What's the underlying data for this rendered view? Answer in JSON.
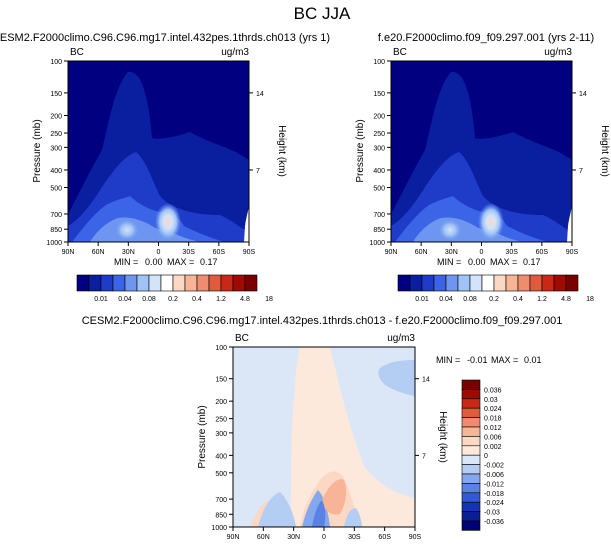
{
  "figure": {
    "title": "BC JJA"
  },
  "chart_data": [
    {
      "type": "contour",
      "title": "CESM2.F2000climo.C96.C96.mg17.intel.432pes.1thrds.ch013 (yrs 1)",
      "left_label": "BC",
      "right_label": "ug/m3",
      "ylabel": "Pressure (mb)",
      "ylabel_right": "Height (km)",
      "x_ticks": [
        "90N",
        "60N",
        "30N",
        "0",
        "30S",
        "60S",
        "90S"
      ],
      "y_ticks": [
        "100",
        "150",
        "200",
        "250",
        "300",
        "400",
        "500",
        "700",
        "850",
        "1000"
      ],
      "y_ticks_right": [
        "14",
        "7"
      ],
      "y_scale": "log",
      "ylim": [
        1000,
        100
      ],
      "xlim": [
        90,
        -90
      ],
      "min_label": "MIN =",
      "min_value": "0.00",
      "max_label": "MAX =",
      "max_value": "0.17",
      "colorbar": {
        "orientation": "horizontal",
        "levels": [
          "0.01",
          "0.04",
          "0.08",
          "0.2",
          "0.4",
          "1.2",
          "4.8",
          "18"
        ],
        "colors": [
          "#000080",
          "#0a1ea0",
          "#1e3cc8",
          "#3c64e6",
          "#6e96f0",
          "#a0c3f5",
          "#d2e3fa",
          "#ffffff",
          "#fbd8c4",
          "#f7b496",
          "#f08c6e",
          "#e05a3c",
          "#c82814",
          "#a00a00",
          "#7a0000"
        ]
      }
    },
    {
      "type": "contour",
      "title": "f.e20.F2000climo.f09_f09.297.001 (yrs 2-11)",
      "left_label": "BC",
      "right_label": "ug/m3",
      "ylabel": "Pressure (mb)",
      "ylabel_right": "Height (km)",
      "x_ticks": [
        "90N",
        "60N",
        "30N",
        "0",
        "30S",
        "60S",
        "90S"
      ],
      "y_ticks": [
        "100",
        "150",
        "200",
        "250",
        "300",
        "400",
        "500",
        "700",
        "850",
        "1000"
      ],
      "y_ticks_right": [
        "14",
        "7"
      ],
      "y_scale": "log",
      "ylim": [
        1000,
        100
      ],
      "xlim": [
        90,
        -90
      ],
      "min_label": "MIN =",
      "min_value": "0.00",
      "max_label": "MAX =",
      "max_value": "0.17"
    },
    {
      "type": "contour",
      "title": "CESM2.F2000climo.C96.C96.mg17.intel.432pes.1thrds.ch013 - f.e20.F2000climo.f09_f09.297.001",
      "left_label": "BC",
      "right_label": "ug/m3",
      "ylabel": "Pressure (mb)",
      "ylabel_right": "Height (km)",
      "x_ticks": [
        "90N",
        "60N",
        "30N",
        "0",
        "30S",
        "60S",
        "90S"
      ],
      "y_ticks": [
        "100",
        "150",
        "200",
        "250",
        "300",
        "400",
        "500",
        "700",
        "850",
        "1000"
      ],
      "y_ticks_right": [
        "14",
        "7"
      ],
      "y_scale": "log",
      "ylim": [
        1000,
        100
      ],
      "xlim": [
        90,
        -90
      ],
      "min_label": "MIN =",
      "min_value": "-0.01",
      "max_label": "MAX =",
      "max_value": "0.01",
      "colorbar": {
        "orientation": "vertical",
        "levels": [
          "0.036",
          "0.03",
          "0.024",
          "0.018",
          "0.012",
          "0.006",
          "0.002",
          "0",
          "-0.002",
          "-0.006",
          "-0.012",
          "-0.018",
          "-0.024",
          "-0.03",
          "-0.036"
        ],
        "colors": [
          "#7a0000",
          "#a00a00",
          "#c82814",
          "#e05a3c",
          "#f08c6e",
          "#f7b496",
          "#fbd8c4",
          "#fde9dc",
          "#dbe7f7",
          "#b4cdf2",
          "#84a8ee",
          "#5a82e6",
          "#325ad2",
          "#1432b4",
          "#0a1e96",
          "#000078"
        ]
      }
    }
  ]
}
